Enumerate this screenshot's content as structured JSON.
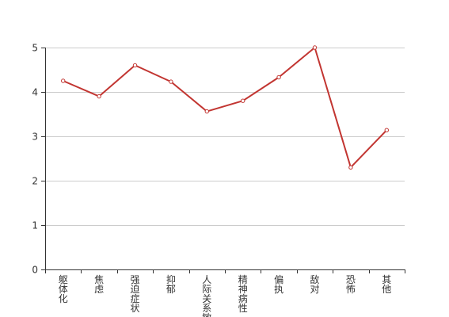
{
  "chart_data": {
    "type": "line",
    "title": "",
    "xlabel": "",
    "ylabel": "",
    "categories": [
      "躯体化",
      "焦虑",
      "强迫症状",
      "抑郁",
      "人际关系敏感",
      "精神病性",
      "偏执",
      "敌对",
      "恐怖",
      "其他"
    ],
    "series": [
      {
        "values": [
          4.25,
          3.9,
          4.6,
          4.23,
          3.56,
          3.8,
          4.33,
          5.0,
          2.3,
          3.14
        ]
      }
    ],
    "ylim": [
      0,
      5
    ],
    "yticks": [
      "0",
      "1",
      "2",
      "3",
      "4",
      "5"
    ],
    "grid": true,
    "colors": {
      "line": "#c23531",
      "grid": "#cccccc",
      "axis": "#333333",
      "marker_fill": "#ffffff"
    }
  }
}
